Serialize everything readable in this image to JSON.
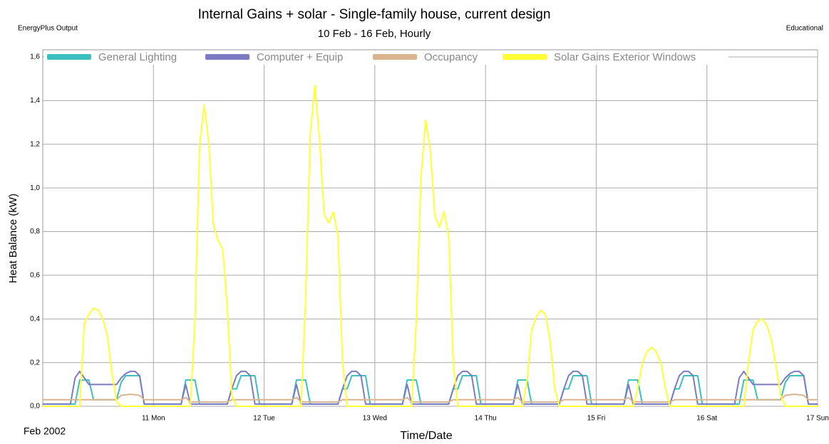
{
  "chart_data": {
    "type": "line",
    "title": "Internal Gains + solar - Single-family house, current design",
    "subtitle": "10 Feb - 16 Feb, Hourly",
    "source": "EnergyPlus Output",
    "corner_note": "Educational",
    "ylabel": "Heat Balance (kW)",
    "xlabel": "Time/Date",
    "x_start_label": "Feb 2002",
    "xlim": [
      0,
      168
    ],
    "xticks": [
      {
        "value": 24,
        "label": "11 Mon"
      },
      {
        "value": 48,
        "label": "12 Tue"
      },
      {
        "value": 72,
        "label": "13 Wed"
      },
      {
        "value": 96,
        "label": "14 Thu"
      },
      {
        "value": 120,
        "label": "15 Fri"
      },
      {
        "value": 144,
        "label": "16 Sat"
      },
      {
        "value": 168,
        "label": "17 Sun"
      }
    ],
    "ylim": [
      0,
      1.6
    ],
    "yticks": [
      {
        "value": 0,
        "label": "0,0"
      },
      {
        "value": 0.2,
        "label": "0,2"
      },
      {
        "value": 0.4,
        "label": "0,4"
      },
      {
        "value": 0.6,
        "label": "0,6"
      },
      {
        "value": 0.8,
        "label": "0,8"
      },
      {
        "value": 1.0,
        "label": "1,0"
      },
      {
        "value": 1.2,
        "label": "1,2"
      },
      {
        "value": 1.4,
        "label": "1,4"
      },
      {
        "value": 1.6,
        "label": "1,6"
      }
    ],
    "grid": true,
    "legend": "top",
    "series": [
      {
        "name": "General Lighting",
        "color": "#3cbfbf",
        "x": [
          0,
          7,
          8,
          10,
          11,
          16,
          17,
          18,
          21,
          22,
          30,
          31,
          33,
          34,
          40,
          41,
          42,
          43,
          46,
          47,
          54,
          55,
          57,
          58,
          64,
          65,
          66,
          67,
          70,
          71,
          78,
          79,
          81,
          82,
          88,
          89,
          90,
          91,
          94,
          95,
          102,
          103,
          105,
          106,
          112,
          113,
          114,
          115,
          118,
          119,
          126,
          127,
          129,
          130,
          136,
          137,
          138,
          139,
          142,
          143,
          151,
          152,
          154,
          155,
          160,
          161,
          162,
          165,
          166,
          168
        ],
        "values": [
          0.01,
          0.01,
          0.12,
          0.12,
          0.03,
          0.03,
          0.11,
          0.14,
          0.14,
          0.01,
          0.01,
          0.12,
          0.12,
          0.01,
          0.01,
          0.08,
          0.08,
          0.14,
          0.14,
          0.01,
          0.01,
          0.12,
          0.12,
          0.01,
          0.01,
          0.08,
          0.08,
          0.14,
          0.14,
          0.01,
          0.01,
          0.12,
          0.12,
          0.01,
          0.01,
          0.08,
          0.08,
          0.14,
          0.14,
          0.01,
          0.01,
          0.12,
          0.12,
          0.01,
          0.01,
          0.08,
          0.08,
          0.14,
          0.14,
          0.01,
          0.01,
          0.12,
          0.12,
          0.01,
          0.01,
          0.08,
          0.08,
          0.14,
          0.14,
          0.01,
          0.01,
          0.12,
          0.12,
          0.03,
          0.03,
          0.11,
          0.14,
          0.14,
          0.01,
          0.01
        ]
      },
      {
        "name": "Computer + Equip",
        "color": "#7b7bc4",
        "x": [
          0,
          6,
          7,
          8,
          9,
          10,
          16,
          17,
          18,
          19,
          20,
          21,
          22,
          30,
          31,
          32,
          40,
          41,
          42,
          43,
          44,
          45,
          46,
          54,
          55,
          56,
          64,
          65,
          66,
          67,
          68,
          69,
          70,
          78,
          79,
          80,
          88,
          89,
          90,
          91,
          92,
          93,
          94,
          102,
          103,
          104,
          112,
          113,
          114,
          115,
          116,
          117,
          118,
          126,
          127,
          128,
          136,
          137,
          138,
          139,
          140,
          141,
          142,
          150,
          151,
          152,
          153,
          154,
          160,
          161,
          162,
          163,
          164,
          165,
          166,
          168
        ],
        "values": [
          0.01,
          0.01,
          0.13,
          0.16,
          0.13,
          0.1,
          0.1,
          0.13,
          0.15,
          0.16,
          0.16,
          0.14,
          0.01,
          0.01,
          0.1,
          0.01,
          0.01,
          0.08,
          0.14,
          0.16,
          0.16,
          0.14,
          0.01,
          0.01,
          0.1,
          0.01,
          0.01,
          0.08,
          0.14,
          0.16,
          0.16,
          0.14,
          0.01,
          0.01,
          0.1,
          0.01,
          0.01,
          0.08,
          0.14,
          0.16,
          0.16,
          0.14,
          0.01,
          0.01,
          0.1,
          0.01,
          0.01,
          0.08,
          0.14,
          0.16,
          0.16,
          0.14,
          0.01,
          0.01,
          0.1,
          0.01,
          0.01,
          0.08,
          0.14,
          0.16,
          0.16,
          0.14,
          0.01,
          0.01,
          0.13,
          0.16,
          0.13,
          0.1,
          0.1,
          0.13,
          0.15,
          0.16,
          0.16,
          0.14,
          0.01,
          0.01
        ]
      },
      {
        "name": "Occupancy",
        "color": "#d9b48f",
        "x": [
          0,
          16,
          17,
          19,
          21,
          22,
          30,
          31,
          32,
          40,
          41,
          54,
          55,
          56,
          64,
          65,
          78,
          79,
          80,
          88,
          89,
          102,
          103,
          104,
          112,
          113,
          126,
          127,
          128,
          136,
          137,
          160,
          161,
          163,
          165,
          166,
          168
        ],
        "values": [
          0.03,
          0.03,
          0.05,
          0.055,
          0.05,
          0.03,
          0.03,
          0.04,
          0.02,
          0.02,
          0.03,
          0.03,
          0.04,
          0.02,
          0.02,
          0.03,
          0.03,
          0.04,
          0.02,
          0.02,
          0.03,
          0.03,
          0.04,
          0.02,
          0.02,
          0.03,
          0.03,
          0.04,
          0.02,
          0.02,
          0.03,
          0.03,
          0.05,
          0.055,
          0.05,
          0.03,
          0.03
        ]
      },
      {
        "name": "Solar Gains Exterior Windows",
        "color": "#ffff33",
        "x": [
          0,
          8,
          9,
          10,
          11,
          12,
          13,
          14,
          15,
          16,
          17,
          32,
          33,
          34,
          35,
          36,
          37,
          38,
          39,
          40,
          41,
          42,
          56,
          57,
          58,
          59,
          60,
          61,
          62,
          63,
          64,
          65,
          66,
          80,
          81,
          82,
          83,
          84,
          85,
          86,
          87,
          88,
          89,
          90,
          104,
          105,
          106,
          107,
          108,
          109,
          110,
          111,
          112,
          128,
          129,
          130,
          131,
          132,
          133,
          134,
          135,
          136,
          152,
          153,
          154,
          155,
          156,
          157,
          158,
          159,
          160,
          161,
          168
        ],
        "values": [
          0,
          0,
          0.38,
          0.42,
          0.45,
          0.44,
          0.4,
          0.32,
          0.15,
          0.02,
          0,
          0,
          0.4,
          1.2,
          1.38,
          1.2,
          0.83,
          0.76,
          0.72,
          0.45,
          0.05,
          0,
          0,
          0.5,
          1.25,
          1.47,
          1.22,
          0.88,
          0.84,
          0.89,
          0.78,
          0.2,
          0,
          0,
          0.4,
          1.05,
          1.31,
          1.18,
          0.87,
          0.82,
          0.89,
          0.78,
          0.2,
          0,
          0,
          0.12,
          0.35,
          0.41,
          0.44,
          0.42,
          0.3,
          0.08,
          0,
          0,
          0.08,
          0.2,
          0.25,
          0.27,
          0.25,
          0.2,
          0.08,
          0,
          0,
          0.2,
          0.35,
          0.39,
          0.4,
          0.37,
          0.3,
          0.18,
          0.05,
          0,
          0
        ]
      }
    ]
  }
}
